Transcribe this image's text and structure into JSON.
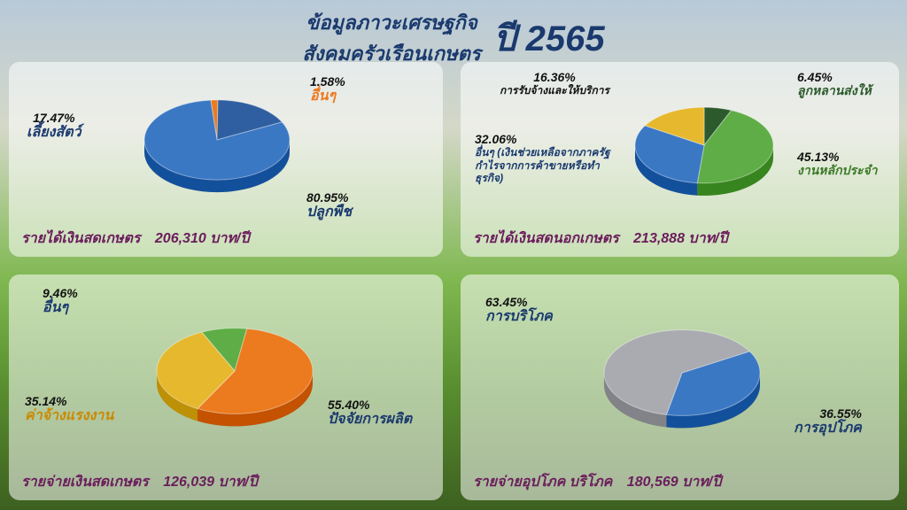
{
  "header": {
    "line1": "ข้อมูลภาวะเศรษฐกิจ",
    "line2": "สังคมครัวเรือนเกษตร",
    "year": "ปี 2565"
  },
  "charts": {
    "farm_income": {
      "type": "pie",
      "caption_left": "รายได้เงินสดเกษตร",
      "caption_value": "206,310 บาท/ปี",
      "slices": [
        {
          "label": "ปลูกพืช",
          "pct": "80.95%",
          "value": 80.95,
          "color": "#3b78c4",
          "label_color": "#1a3a6e"
        },
        {
          "label": "เลี้ยงสัตว์",
          "pct": "17.47%",
          "value": 17.47,
          "color": "#2f5fa0",
          "label_color": "#1a3a6e"
        },
        {
          "label": "อื่นๆ",
          "pct": "1.58%",
          "value": 1.58,
          "color": "#ec7a1e",
          "label_color": "#ec7a1e"
        }
      ]
    },
    "non_farm_income": {
      "type": "pie",
      "caption_left": "รายได้เงินสดนอกเกษตร",
      "caption_value": "213,888 บาท/ปี",
      "slices": [
        {
          "label": "งานหลักประจำ",
          "pct": "45.13%",
          "value": 45.13,
          "color": "#5fad46",
          "label_color": "#3d7a28"
        },
        {
          "label": "อื่นๆ (เงินช่วยเหลือจากภาครัฐ กำไรจากการค้าขายหรือทำธุรกิจ)",
          "pct": "32.06%",
          "value": 32.06,
          "color": "#3b78c4",
          "label_color": "#1a3a6e"
        },
        {
          "label": "การรับจ้างและให้บริการ",
          "pct": "16.36%",
          "value": 16.36,
          "color": "#e6b82e",
          "label_color": "#111"
        },
        {
          "label": "ลูกหลานส่งให้",
          "pct": "6.45%",
          "value": 6.45,
          "color": "#2d5a2d",
          "label_color": "#2d5a2d"
        }
      ]
    },
    "farm_expense": {
      "type": "pie",
      "caption_left": "รายจ่ายเงินสดเกษตร",
      "caption_value": "126,039 บาท/ปี",
      "slices": [
        {
          "label": "ปัจจัยการผลิต",
          "pct": "55.40%",
          "value": 55.4,
          "color": "#ec7a1e",
          "label_color": "#1a3a6e"
        },
        {
          "label": "ค่าจ้างแรงงาน",
          "pct": "35.14%",
          "value": 35.14,
          "color": "#e6b82e",
          "label_color": "#c98a00"
        },
        {
          "label": "อื่นๆ",
          "pct": "9.46%",
          "value": 9.46,
          "color": "#5fad46",
          "label_color": "#1a3a6e"
        }
      ]
    },
    "consumption": {
      "type": "pie",
      "caption_left": "รายจ่ายอุปโภค บริโภค",
      "caption_value": "180,569 บาท/ปี",
      "slices": [
        {
          "label": "การบริโภค",
          "pct": "63.45%",
          "value": 63.45,
          "color": "#a9abb0",
          "label_color": "#1a3a6e"
        },
        {
          "label": "การอุปโภค",
          "pct": "36.55%",
          "value": 36.55,
          "color": "#3b78c4",
          "label_color": "#1a3a6e"
        }
      ]
    }
  }
}
